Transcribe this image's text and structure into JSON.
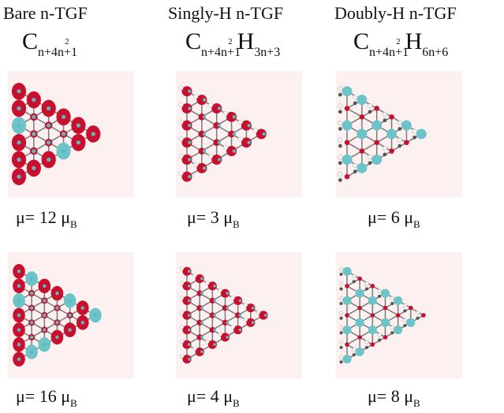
{
  "columns": [
    {
      "title": "Bare n-TGF",
      "formula": {
        "C": "C",
        "c_sub": "n+4n+1",
        "c_sup": "2",
        "H": "",
        "h_sub": ""
      },
      "moments": [
        {
          "mu": "μ",
          "text": "= 12 μ",
          "sub": "B"
        },
        {
          "mu": "μ",
          "text": "= 16 μ",
          "sub": "B"
        }
      ],
      "style": "bare"
    },
    {
      "title": "Singly-H   n-TGF",
      "formula": {
        "C": "C",
        "c_sub": "n+4n+1",
        "c_sup": "2",
        "H": "H",
        "h_sub": "3n+3"
      },
      "moments": [
        {
          "mu": "μ",
          "text": "= 3 μ",
          "sub": "B"
        },
        {
          "mu": "μ",
          "text": "= 4 μ",
          "sub": "B"
        }
      ],
      "style": "single"
    },
    {
      "title": "Doubly-H   n-TGF",
      "formula": {
        "C": "C",
        "c_sub": "n+4n+1",
        "c_sup": "2",
        "H": "H",
        "h_sub": "6n+6"
      },
      "moments": [
        {
          "mu": "μ",
          "text": "= 6 μ",
          "sub": "B"
        },
        {
          "mu": "μ",
          "text": "= 8 μ",
          "sub": "B"
        }
      ],
      "style": "double"
    }
  ],
  "colors": {
    "spin_up": "#c8102e",
    "spin_down": "#6cc4c9",
    "carbon": "#5fb7bf",
    "hydrogen": "#f2f2f2",
    "bond": "#7a7a7a",
    "dark_h": "#555555",
    "panel_bg": "#fdf0f0"
  }
}
